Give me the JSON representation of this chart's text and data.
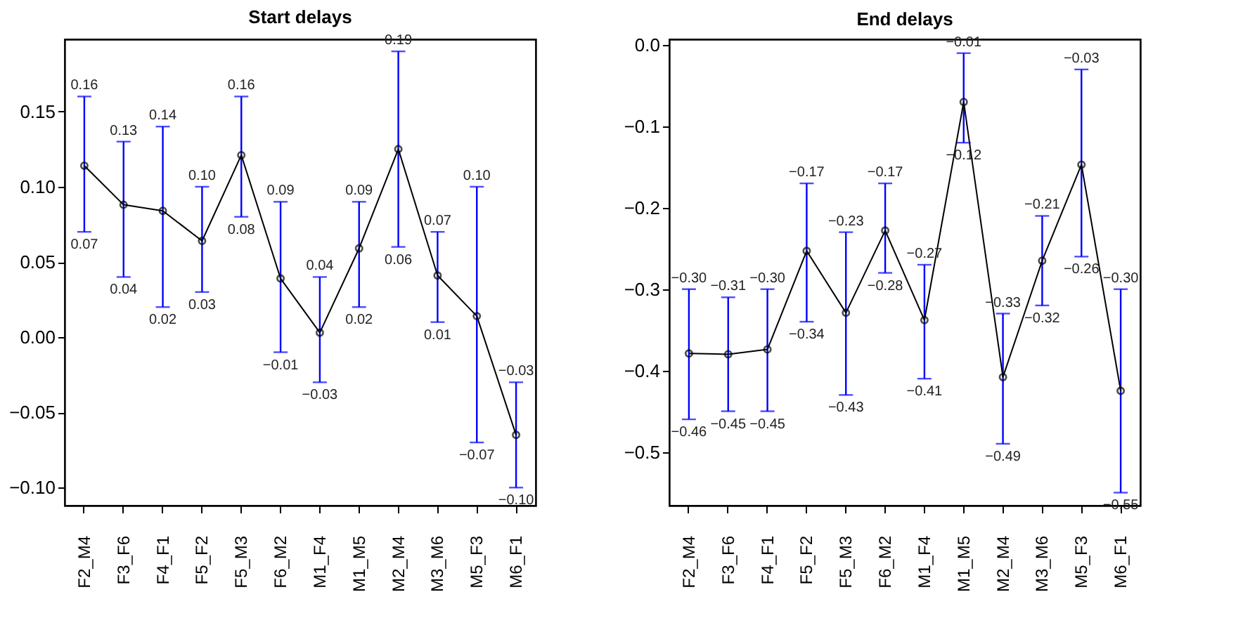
{
  "chart_data": [
    {
      "type": "line",
      "title": "Start delays",
      "categories": [
        "F2_M4",
        "F3_F6",
        "F4_F1",
        "F5_F2",
        "F5_M3",
        "F6_M2",
        "M1_F4",
        "M1_M5",
        "M2_M4",
        "M3_M6",
        "M5_F3",
        "M6_F1"
      ],
      "series": [
        {
          "color": "#000000",
          "values": [
            0.114,
            0.088,
            0.084,
            0.064,
            0.121,
            0.039,
            0.003,
            0.059,
            0.125,
            0.041,
            0.014,
            -0.065
          ],
          "errors": [
            [
              0.07,
              0.16
            ],
            [
              0.04,
              0.13
            ],
            [
              0.02,
              0.14
            ],
            [
              0.03,
              0.1
            ],
            [
              0.08,
              0.16
            ],
            [
              -0.01,
              0.09
            ],
            [
              -0.03,
              0.04
            ],
            [
              0.02,
              0.09
            ],
            [
              0.06,
              0.19
            ],
            [
              0.01,
              0.07
            ],
            [
              -0.07,
              0.1
            ],
            [
              -0.1,
              -0.03
            ]
          ]
        }
      ],
      "ylim": [
        -0.112,
        0.198
      ],
      "yticks": [
        {
          "value": -0.1,
          "label": "−0.10"
        },
        {
          "value": -0.05,
          "label": "−0.05"
        },
        {
          "value": 0,
          "label": "0.00"
        },
        {
          "value": 0.05,
          "label": "0.05"
        },
        {
          "value": 0.1,
          "label": "0.10"
        },
        {
          "value": 0.15,
          "label": "0.15"
        }
      ],
      "marker": "circle",
      "line_style": "solid",
      "grid": false,
      "annotations": [
        {
          "text": "0.16",
          "x": "F2_M4",
          "y": 0.16
        },
        {
          "text": "0.07",
          "x": "F2_M4",
          "y": 0.07
        },
        {
          "text": "0.13",
          "x": "F3_F6",
          "y": 0.13
        },
        {
          "text": "0.04",
          "x": "F3_F6",
          "y": 0.04
        },
        {
          "text": "0.14",
          "x": "F4_F1",
          "y": 0.14
        },
        {
          "text": "0.02",
          "x": "F4_F1",
          "y": 0.02
        },
        {
          "text": "0.10",
          "x": "F5_F2",
          "y": 0.1
        },
        {
          "text": "0.03",
          "x": "F5_F2",
          "y": 0.03
        },
        {
          "text": "0.16",
          "x": "F5_M3",
          "y": 0.16
        },
        {
          "text": "0.08",
          "x": "F5_M3",
          "y": 0.08
        },
        {
          "text": "0.09",
          "x": "F6_M2",
          "y": 0.09
        },
        {
          "text": "−0.01",
          "x": "F6_M2",
          "y": -0.01
        },
        {
          "text": "0.04",
          "x": "M1_F4",
          "y": 0.04
        },
        {
          "text": "−0.03",
          "x": "M1_F4",
          "y": -0.03
        },
        {
          "text": "0.09",
          "x": "M1_M5",
          "y": 0.09
        },
        {
          "text": "0.02",
          "x": "M1_M5",
          "y": 0.02
        },
        {
          "text": "0.19",
          "x": "M2_M4",
          "y": 0.19
        },
        {
          "text": "0.06",
          "x": "M2_M4",
          "y": 0.06
        },
        {
          "text": "0.07",
          "x": "M3_M6",
          "y": 0.07
        },
        {
          "text": "0.01",
          "x": "M3_M6",
          "y": 0.01
        },
        {
          "text": "0.10",
          "x": "M5_F3",
          "y": 0.1
        },
        {
          "text": "−0.07",
          "x": "M5_F3",
          "y": -0.07
        },
        {
          "text": "−0.03",
          "x": "M6_F1",
          "y": -0.03
        },
        {
          "text": "−0.10",
          "x": "M6_F1",
          "y": -0.1
        }
      ]
    },
    {
      "type": "line",
      "title": "End delays",
      "categories": [
        "F2_M4",
        "F3_F6",
        "F4_F1",
        "F5_F2",
        "F5_M3",
        "F6_M2",
        "M1_F4",
        "M1_M5",
        "M2_M4",
        "M3_M6",
        "M5_F3",
        "M6_F1"
      ],
      "series": [
        {
          "color": "#000000",
          "values": [
            -0.379,
            -0.38,
            -0.374,
            -0.253,
            -0.329,
            -0.228,
            -0.338,
            -0.07,
            -0.408,
            -0.265,
            -0.147,
            -0.425
          ],
          "errors": [
            [
              -0.46,
              -0.3
            ],
            [
              -0.45,
              -0.31
            ],
            [
              -0.45,
              -0.3
            ],
            [
              -0.34,
              -0.17
            ],
            [
              -0.43,
              -0.23
            ],
            [
              -0.28,
              -0.17
            ],
            [
              -0.41,
              -0.27
            ],
            [
              -0.12,
              -0.01
            ],
            [
              -0.49,
              -0.33
            ],
            [
              -0.32,
              -0.21
            ],
            [
              -0.26,
              -0.03
            ],
            [
              -0.55,
              -0.3
            ]
          ]
        }
      ],
      "ylim": [
        -0.566,
        0.007
      ],
      "yticks": [
        {
          "value": -0.5,
          "label": "−0.5"
        },
        {
          "value": -0.4,
          "label": "−0.4"
        },
        {
          "value": -0.3,
          "label": "−0.3"
        },
        {
          "value": -0.2,
          "label": "−0.2"
        },
        {
          "value": -0.1,
          "label": "−0.1"
        },
        {
          "value": 0,
          "label": "0.0"
        }
      ],
      "marker": "circle",
      "line_style": "solid",
      "grid": false,
      "annotations": [
        {
          "text": "−0.30",
          "x": "F2_M4",
          "y": -0.3
        },
        {
          "text": "−0.46",
          "x": "F2_M4",
          "y": -0.46
        },
        {
          "text": "−0.31",
          "x": "F3_F6",
          "y": -0.31
        },
        {
          "text": "−0.45",
          "x": "F3_F6",
          "y": -0.45
        },
        {
          "text": "−0.30",
          "x": "F4_F1",
          "y": -0.3
        },
        {
          "text": "−0.45",
          "x": "F4_F1",
          "y": -0.45
        },
        {
          "text": "−0.17",
          "x": "F5_F2",
          "y": -0.17
        },
        {
          "text": "−0.34",
          "x": "F5_F2",
          "y": -0.34
        },
        {
          "text": "−0.23",
          "x": "F5_M3",
          "y": -0.23
        },
        {
          "text": "−0.43",
          "x": "F5_M3",
          "y": -0.43
        },
        {
          "text": "−0.17",
          "x": "F6_M2",
          "y": -0.17
        },
        {
          "text": "−0.28",
          "x": "F6_M2",
          "y": -0.28
        },
        {
          "text": "−0.27",
          "x": "M1_F4",
          "y": -0.27
        },
        {
          "text": "−0.41",
          "x": "M1_F4",
          "y": -0.41
        },
        {
          "text": "−0.01",
          "x": "M1_M5",
          "y": -0.01
        },
        {
          "text": "−0.12",
          "x": "M1_M5",
          "y": -0.12
        },
        {
          "text": "−0.33",
          "x": "M2_M4",
          "y": -0.33
        },
        {
          "text": "−0.49",
          "x": "M2_M4",
          "y": -0.49
        },
        {
          "text": "−0.21",
          "x": "M3_M6",
          "y": -0.21
        },
        {
          "text": "−0.32",
          "x": "M3_M6",
          "y": -0.32
        },
        {
          "text": "−0.03",
          "x": "M5_F3",
          "y": -0.03
        },
        {
          "text": "−0.26",
          "x": "M5_F3",
          "y": -0.26
        },
        {
          "text": "−0.30",
          "x": "M6_F1",
          "y": -0.3
        },
        {
          "text": "−0.55",
          "x": "M6_F1",
          "y": -0.55
        }
      ]
    }
  ]
}
